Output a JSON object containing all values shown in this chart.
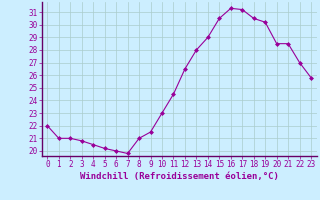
{
  "x": [
    0,
    1,
    2,
    3,
    4,
    5,
    6,
    7,
    8,
    9,
    10,
    11,
    12,
    13,
    14,
    15,
    16,
    17,
    18,
    19,
    20,
    21,
    22,
    23
  ],
  "y": [
    22.0,
    21.0,
    21.0,
    20.8,
    20.5,
    20.2,
    20.0,
    19.8,
    21.0,
    21.5,
    23.0,
    24.5,
    26.5,
    28.0,
    29.0,
    30.5,
    31.3,
    31.2,
    30.5,
    30.2,
    28.5,
    28.5,
    27.0,
    25.8
  ],
  "line_color": "#990099",
  "marker": "D",
  "marker_size": 2,
  "bg_color": "#cceeff",
  "grid_color": "#aacccc",
  "ylim": [
    19.6,
    31.8
  ],
  "yticks": [
    20,
    21,
    22,
    23,
    24,
    25,
    26,
    27,
    28,
    29,
    30,
    31
  ],
  "xticks": [
    0,
    1,
    2,
    3,
    4,
    5,
    6,
    7,
    8,
    9,
    10,
    11,
    12,
    13,
    14,
    15,
    16,
    17,
    18,
    19,
    20,
    21,
    22,
    23
  ],
  "xlabel": "Windchill (Refroidissement éolien,°C)",
  "xlabel_color": "#990099",
  "tick_color": "#990099",
  "axis_line_color": "#660066",
  "label_fontsize": 6.5,
  "tick_fontsize": 5.5
}
